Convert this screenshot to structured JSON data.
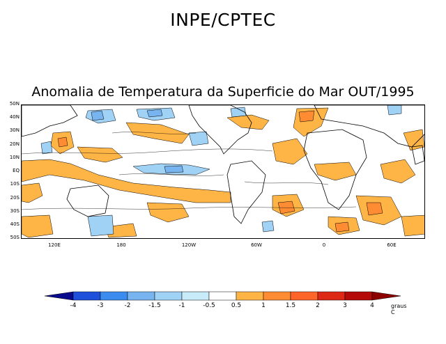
{
  "header": {
    "title": "INPE/CPTEC"
  },
  "map": {
    "title": "Anomalia de Temperatura da Superficie do Mar OUT/1995",
    "variable": "Sea surface temperature anomaly",
    "lat_labels": [
      "50N",
      "40N",
      "30N",
      "20N",
      "10N",
      "EQ",
      "10S",
      "20S",
      "30S",
      "40S",
      "50S"
    ],
    "lon_labels": [
      "120E",
      "180",
      "120W",
      "60W",
      "0",
      "60E"
    ]
  },
  "colorbar": {
    "labels": [
      "-4",
      "-3",
      "-2",
      "-1.5",
      "-1",
      "-0.5",
      "0.5",
      "1",
      "1.5",
      "2",
      "3",
      "4"
    ],
    "units": "graus C",
    "colors": [
      "#0a0a8c",
      "#1e50dc",
      "#3c8cf0",
      "#78b4f0",
      "#a0d2f5",
      "#c8ebfa",
      "#ffffff",
      "#ffb446",
      "#ff8c32",
      "#ff6428",
      "#dc2814",
      "#b40a0a",
      "#8c0000"
    ]
  }
}
